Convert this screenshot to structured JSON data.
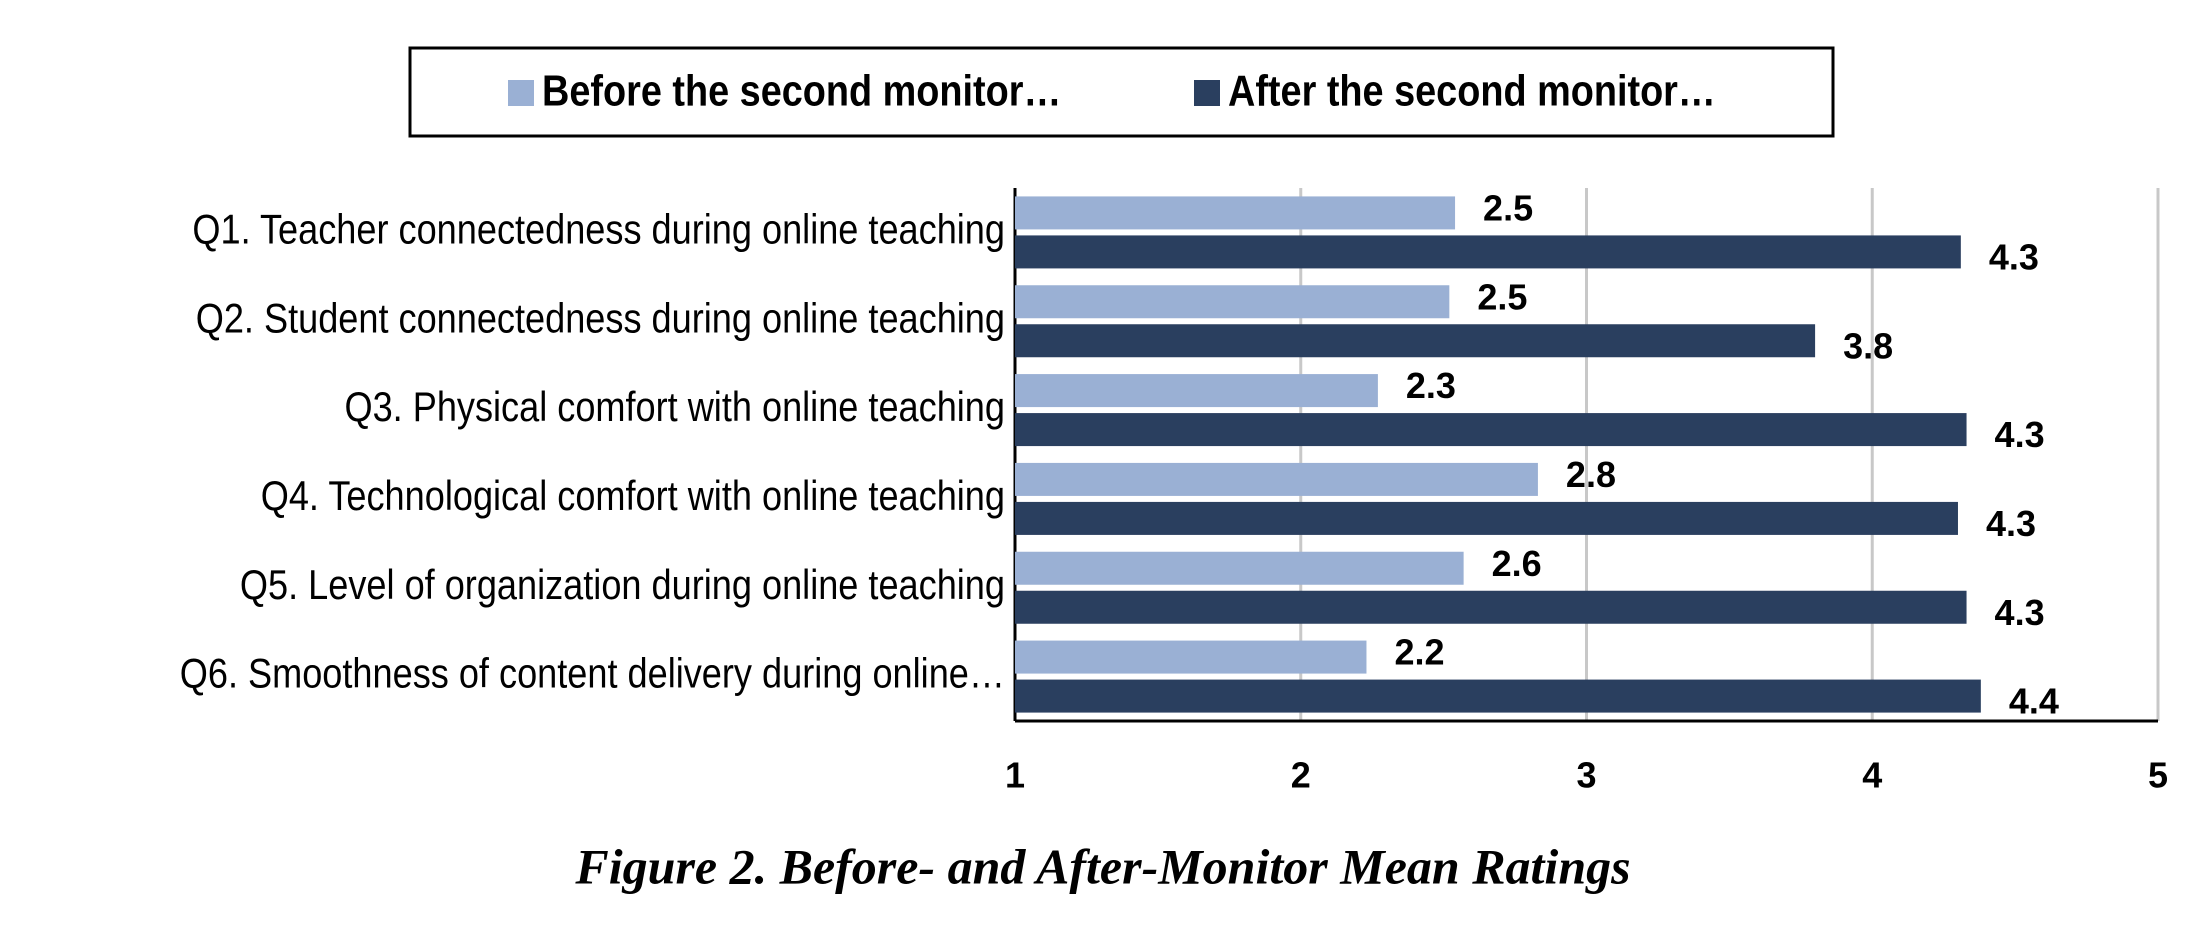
{
  "chart_data": {
    "type": "hbar",
    "title": "Figure 2. Before- and After-Monitor Mean Ratings",
    "categories": [
      "Q1. Teacher connectedness during online teaching",
      "Q2. Student connectedness during online teaching",
      "Q3. Physical comfort with online teaching",
      "Q4. Technological comfort with online teaching",
      "Q5. Level of organization during online teaching",
      "Q6. Smoothness of content delivery during online…"
    ],
    "series": [
      {
        "name": "Before the second monitor…",
        "color": "#9ab0d4",
        "values": [
          2.54,
          2.52,
          2.27,
          2.83,
          2.57,
          2.23
        ],
        "value_labels": [
          "2.5",
          "2.5",
          "2.3",
          "2.8",
          "2.6",
          "2.2"
        ]
      },
      {
        "name": "After the second monitor…",
        "color": "#2a3f5f",
        "values": [
          4.31,
          3.8,
          4.33,
          4.3,
          4.33,
          4.38
        ],
        "value_labels": [
          "4.3",
          "3.8",
          "4.3",
          "4.3",
          "4.3",
          "4.4"
        ]
      }
    ],
    "xlim": [
      1,
      5
    ],
    "xticks": [
      1,
      2,
      3,
      4,
      5
    ],
    "grid": true,
    "legend": "top"
  }
}
